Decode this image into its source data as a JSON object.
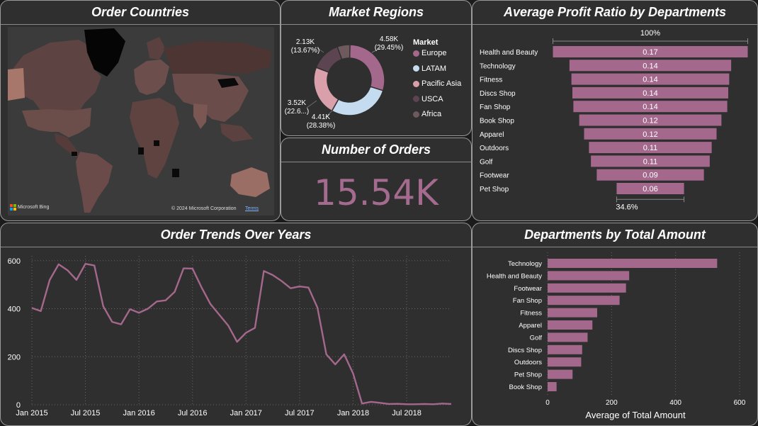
{
  "panels": {
    "map_title": "Order Countries",
    "regions_title": "Market Regions",
    "orders_title": "Number of Orders",
    "profit_title": "Average Profit Ratio by Departments",
    "trend_title": "Order Trends Over Years",
    "dept_title": "Departments by Total Amount"
  },
  "map": {
    "provider": "Microsoft Bing",
    "copyright": "© 2024 Microsoft Corporation",
    "terms": "Terms"
  },
  "number_of_orders": "15.54K",
  "colors": {
    "accent": "#a4688c",
    "panel_bg": "#2f2f2f",
    "europe": "#a4688c",
    "latam": "#c5dcf0",
    "pacific_asia": "#d9a0ac",
    "usca": "#5c4451",
    "africa": "#6e5a5c"
  },
  "chart_data": [
    {
      "id": "market_regions",
      "type": "pie",
      "legend_title": "Market",
      "labels": [
        "Europe",
        "LATAM",
        "Pacific Asia",
        "USCA",
        "Africa"
      ],
      "values": [
        4.58,
        4.41,
        3.52,
        2.13,
        0.9
      ],
      "data_labels": [
        {
          "value": "4.58K",
          "pct": "(29.45%)"
        },
        {
          "value": "4.41K",
          "pct": "(28.38%)"
        },
        {
          "value": "3.52K",
          "pct": "(22.6...)"
        },
        {
          "value": "2.13K",
          "pct": "(13.67%)"
        }
      ]
    },
    {
      "id": "profit_ratio",
      "type": "bar",
      "top_label": "100%",
      "bottom_label": "34.6%",
      "categories": [
        "Health and Beauty",
        "Technology",
        "Fitness",
        "Discs Shop",
        "Fan Shop",
        "Book Shop",
        "Apparel",
        "Outdoors",
        "Golf",
        "Footwear",
        "Pet Shop"
      ],
      "values": [
        0.17,
        0.14,
        0.14,
        0.14,
        0.14,
        0.12,
        0.12,
        0.11,
        0.11,
        0.09,
        0.06
      ],
      "value_labels": [
        "0.17",
        "0.14",
        "0.14",
        "0.14",
        "0.14",
        "0.12",
        "0.12",
        "0.11",
        "0.11",
        "0.09",
        "0.06"
      ],
      "relative_widths": [
        1.0,
        0.83,
        0.81,
        0.8,
        0.79,
        0.73,
        0.68,
        0.63,
        0.61,
        0.55,
        0.346
      ]
    },
    {
      "id": "order_trends",
      "type": "line",
      "x": [
        "2015-01",
        "2015-02",
        "2015-03",
        "2015-04",
        "2015-05",
        "2015-06",
        "2015-07",
        "2015-08",
        "2015-09",
        "2015-10",
        "2015-11",
        "2015-12",
        "2016-01",
        "2016-02",
        "2016-03",
        "2016-04",
        "2016-05",
        "2016-06",
        "2016-07",
        "2016-08",
        "2016-09",
        "2016-10",
        "2016-11",
        "2016-12",
        "2017-01",
        "2017-02",
        "2017-03",
        "2017-04",
        "2017-05",
        "2017-06",
        "2017-07",
        "2017-08",
        "2017-09",
        "2017-10",
        "2017-11",
        "2017-12",
        "2018-01",
        "2018-02",
        "2018-03",
        "2018-04",
        "2018-05",
        "2018-06",
        "2018-07",
        "2018-08",
        "2018-09",
        "2018-10",
        "2018-11",
        "2018-12"
      ],
      "y": [
        403,
        390,
        520,
        585,
        560,
        520,
        587,
        580,
        410,
        345,
        335,
        398,
        383,
        400,
        430,
        435,
        470,
        568,
        567,
        490,
        420,
        375,
        330,
        262,
        300,
        320,
        557,
        540,
        515,
        485,
        493,
        488,
        405,
        210,
        168,
        210,
        130,
        5,
        12,
        8,
        3,
        4,
        2,
        2,
        3,
        2,
        5,
        3
      ],
      "xticks": [
        "Jan 2015",
        "Jul 2015",
        "Jan 2016",
        "Jul 2016",
        "Jan 2017",
        "Jul 2017",
        "Jan 2018",
        "Jul 2018"
      ],
      "yticks": [
        "0",
        "200",
        "400",
        "600"
      ],
      "ylim": [
        0,
        620
      ]
    },
    {
      "id": "dept_total",
      "type": "bar",
      "xlabel": "Average of Total Amount",
      "categories": [
        "Technology",
        "Health and Beauty",
        "Footwear",
        "Fan Shop",
        "Fitness",
        "Apparel",
        "Golf",
        "Discs Shop",
        "Outdoors",
        "Pet Shop",
        "Book Shop"
      ],
      "values": [
        530,
        255,
        245,
        225,
        155,
        140,
        125,
        108,
        105,
        78,
        28
      ],
      "xticks": [
        "0",
        "200",
        "400",
        "600"
      ],
      "xlim": [
        0,
        620
      ]
    }
  ]
}
